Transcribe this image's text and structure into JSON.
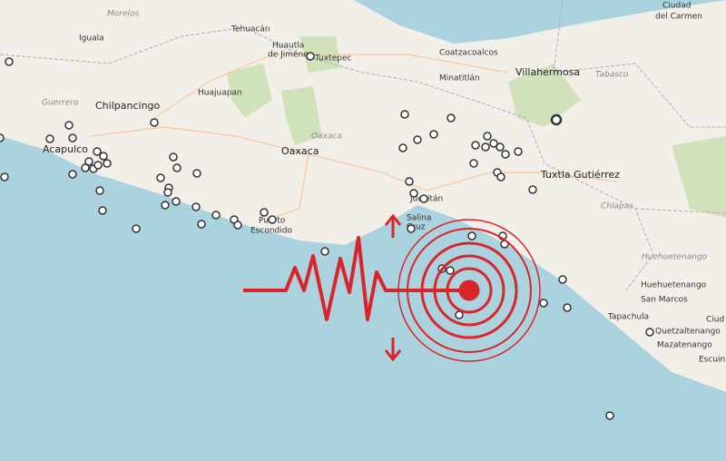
{
  "map": {
    "labels": [
      {
        "text": "Ciudad"
      },
      {
        "text": "del Carmen"
      },
      {
        "text": "Morelos"
      },
      {
        "text": "Iguala"
      },
      {
        "text": "Tehuacán"
      },
      {
        "text": "Huautla"
      },
      {
        "text": "de Jiméne"
      },
      {
        "text": "Tuxtepec"
      },
      {
        "text": "Coatzacoalcos"
      },
      {
        "text": "Villahermosa"
      },
      {
        "text": "Tabasco"
      },
      {
        "text": "Minatitlán"
      },
      {
        "text": "Guerrero"
      },
      {
        "text": "Chilpancingo"
      },
      {
        "text": "Huajuapan"
      },
      {
        "text": "Oaxaca"
      },
      {
        "text": "Oaxaca"
      },
      {
        "text": "Acapulco"
      },
      {
        "text": "Puerto"
      },
      {
        "text": "Escondido"
      },
      {
        "text": "Salina"
      },
      {
        "text": "Cruz"
      },
      {
        "text": "Juchitán"
      },
      {
        "text": "Tuxtla Gutiérrez"
      },
      {
        "text": "Chiapas"
      },
      {
        "text": "Huehuetenango"
      },
      {
        "text": "Huehuetenango"
      },
      {
        "text": "San Marcos"
      },
      {
        "text": "Tapachula"
      },
      {
        "text": "Quetzaltenango"
      },
      {
        "text": "Mazatenango"
      },
      {
        "text": "Escuin"
      },
      {
        "text": "Ciud"
      }
    ]
  }
}
